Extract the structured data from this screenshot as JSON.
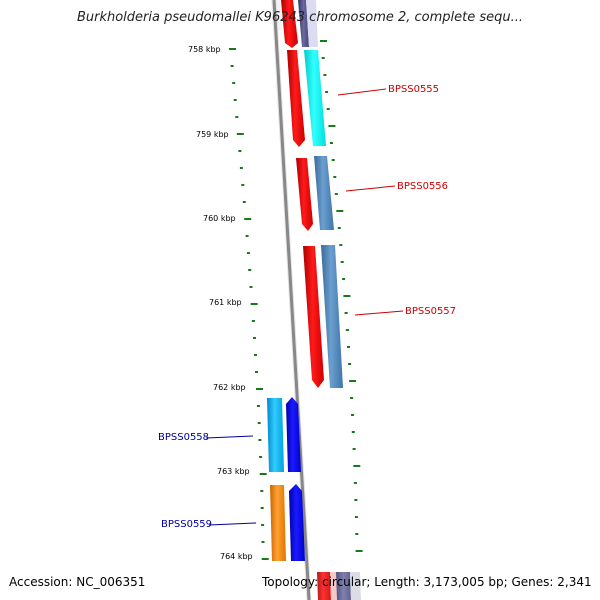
{
  "header": {
    "title": "Burkholderia pseudomallei K96243 chromosome 2, complete sequ..."
  },
  "footer": {
    "accession": "Accession: NC_006351",
    "summary": "Topology: circular; Length: 3,173,005 bp; Genes: 2,341"
  },
  "ticks": [
    "758 kbp",
    "759 kbp",
    "760 kbp",
    "761 kbp",
    "762 kbp",
    "763 kbp",
    "764 kbp"
  ],
  "genes": [
    {
      "label": "BPSS0555",
      "strand": "forward",
      "color": "#cc0000"
    },
    {
      "label": "BPSS0556",
      "strand": "forward",
      "color": "#cc0000"
    },
    {
      "label": "BPSS0557",
      "strand": "forward",
      "color": "#cc0000"
    },
    {
      "label": "BPSS0558",
      "strand": "reverse",
      "color": "#000099"
    },
    {
      "label": "BPSS0559",
      "strand": "reverse",
      "color": "#000099"
    }
  ],
  "colors": {
    "cds_forward": "#ff0000",
    "cds_reverse": "#0000ff",
    "backbone": "#888888",
    "ticks": "#1a7a1a",
    "cog_cyan": "#00ffff",
    "cog_steel": "#4a7fb0",
    "cog_sky": "#00aaee",
    "cog_orange": "#ff8800"
  }
}
